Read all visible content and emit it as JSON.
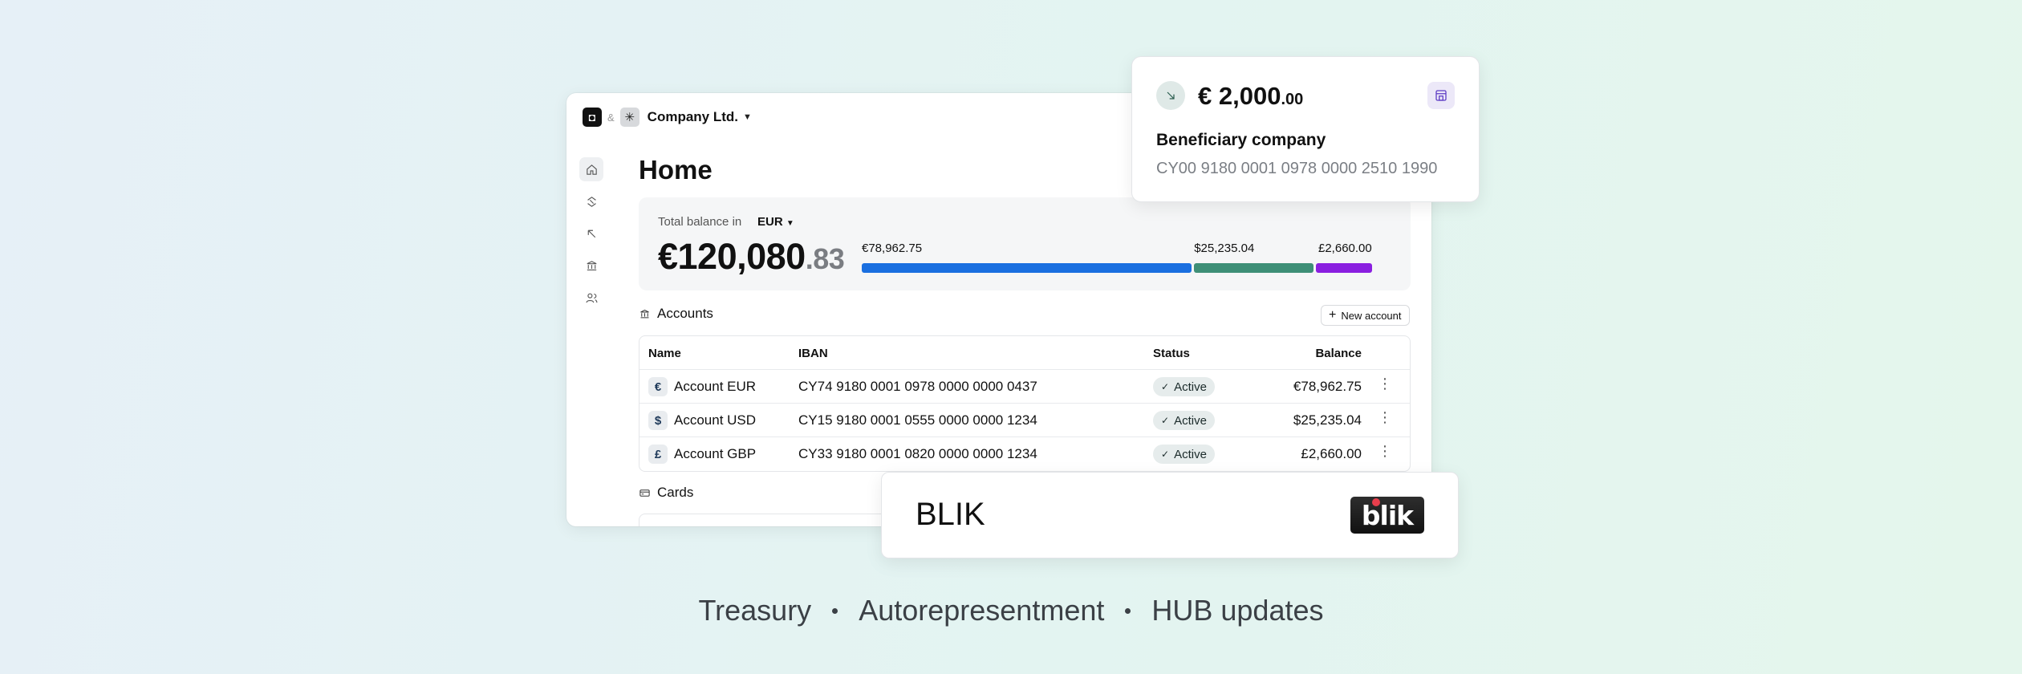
{
  "topbar": {
    "company_name": "Company Ltd.",
    "ampersand": "&"
  },
  "sidebar": {
    "items": [
      {
        "icon": "home-icon",
        "active": true
      },
      {
        "icon": "transfers-icon",
        "active": false
      },
      {
        "icon": "outgoing-icon",
        "active": false
      },
      {
        "icon": "bank-icon",
        "active": false
      },
      {
        "icon": "users-icon",
        "active": false
      }
    ]
  },
  "page": {
    "title": "Home"
  },
  "balance": {
    "label": "Total balance in",
    "currency": "EUR",
    "amount_main": "€120,080",
    "amount_cents": ".83",
    "bars": [
      {
        "label": "€78,962.75",
        "value": 78962.75,
        "color": "#1a6fe0"
      },
      {
        "label": "$25,235.04",
        "value": 25235.04,
        "color": "#3e8f77"
      },
      {
        "label": "£2,660.00",
        "value": 2660.0,
        "color": "#8a1fe0"
      }
    ]
  },
  "accounts": {
    "title": "Accounts",
    "new_button": "New account",
    "columns": {
      "name": "Name",
      "iban": "IBAN",
      "status": "Status",
      "balance": "Balance"
    },
    "rows": [
      {
        "symbol": "€",
        "name": "Account EUR",
        "iban": "CY74 9180 0001 0978 0000 0000 0437",
        "status": "Active",
        "balance": "€78,962.75"
      },
      {
        "symbol": "$",
        "name": "Account USD",
        "iban": "CY15 9180 0001 0555 0000 0000 1234",
        "status": "Active",
        "balance": "$25,235.04"
      },
      {
        "symbol": "£",
        "name": "Account GBP",
        "iban": "CY33 9180 0001 0820 0000 0000 1234",
        "status": "Active",
        "balance": "£2,660.00"
      }
    ]
  },
  "cards": {
    "title": "Cards"
  },
  "payment": {
    "amount_main": "€ 2,000",
    "amount_cents": ".00",
    "beneficiary": "Beneficiary company",
    "iban": "CY00 9180 0001 0978 0000 2510 1990"
  },
  "blik": {
    "title": "BLIK",
    "logo_text": "blik"
  },
  "tagline": [
    "Treasury",
    "Autorepresentment",
    "HUB updates"
  ],
  "colors": {
    "accent_blue": "#1a6fe0",
    "accent_green": "#3e8f77",
    "accent_purple": "#8a1fe0"
  }
}
